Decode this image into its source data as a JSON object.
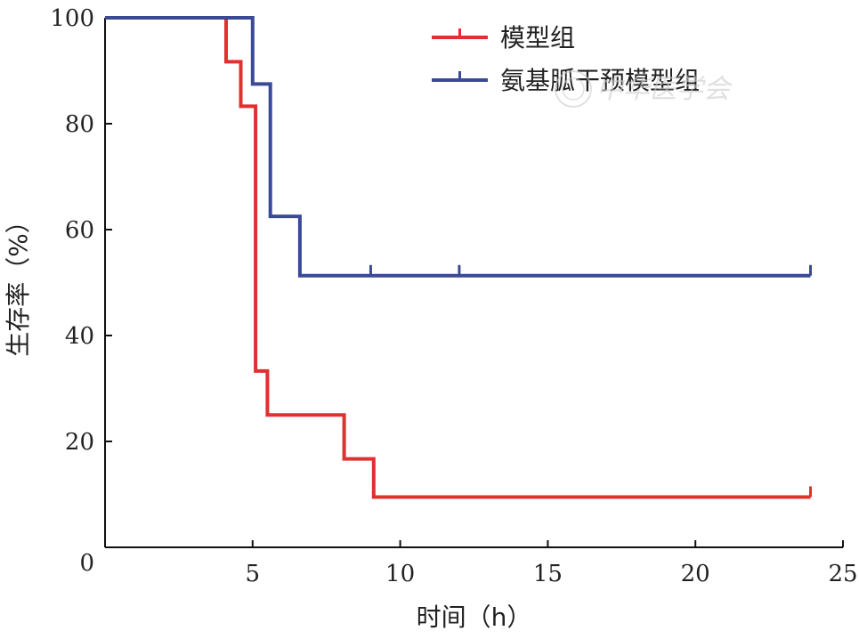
{
  "chart_data": {
    "type": "line",
    "subtype": "step-survival",
    "title": "",
    "xlabel": "时间（h）",
    "ylabel": "生存率（%）",
    "xlim": [
      0,
      25
    ],
    "ylim": [
      0,
      100
    ],
    "xticks": [
      5,
      10,
      15,
      20,
      25
    ],
    "yticks": [
      0,
      20,
      40,
      60,
      80,
      100
    ],
    "grid": false,
    "legend_position": "top-right",
    "series": [
      {
        "name": "模型组",
        "color": "#e03030",
        "x": [
          0,
          4.1,
          4.1,
          4.6,
          4.6,
          5.1,
          5.1,
          5.5,
          5.5,
          8.1,
          8.1,
          9.1,
          9.1,
          23.9
        ],
        "y": [
          100,
          100,
          91.7,
          91.7,
          83.3,
          83.3,
          33.3,
          33.3,
          25,
          25,
          16.7,
          16.7,
          9.5,
          9.5
        ],
        "censored": [
          [
            23.9,
            9.5
          ]
        ]
      },
      {
        "name": "氨基胍干预模型组",
        "color": "#3a4a96",
        "x": [
          0,
          5.0,
          5.0,
          5.6,
          5.6,
          6.6,
          6.6,
          23.9
        ],
        "y": [
          100,
          100,
          87.5,
          87.5,
          62.5,
          62.5,
          51.3,
          51.3
        ],
        "censored": [
          [
            9.0,
            51.3
          ],
          [
            12.0,
            51.3
          ],
          [
            23.9,
            51.3
          ]
        ]
      }
    ]
  },
  "watermark": "中华医学会",
  "icons": {
    "watermark_seal": "seal-icon"
  }
}
